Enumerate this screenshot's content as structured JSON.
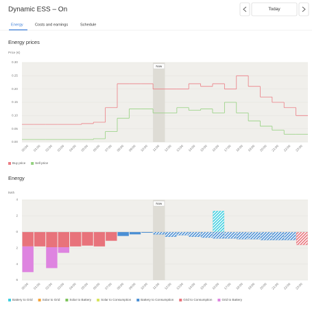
{
  "header": {
    "title": "Dynamic ESS – On",
    "date_button": "Today"
  },
  "tabs": [
    "Energy",
    "Costs and earnings",
    "Schedule"
  ],
  "chart_data": [
    {
      "type": "line",
      "step": true,
      "title": "Energy prices",
      "y_label": "Price (€)",
      "now": "11:00",
      "now_label": "Now",
      "categories": [
        "00:00",
        "01:00",
        "02:00",
        "03:00",
        "04:00",
        "05:00",
        "06:00",
        "07:00",
        "08:00",
        "09:00",
        "10:00",
        "11:00",
        "12:00",
        "13:00",
        "14:00",
        "15:00",
        "16:00",
        "17:00",
        "18:00",
        "19:00",
        "20:00",
        "21:00",
        "22:00",
        "23:00"
      ],
      "series": [
        {
          "name": "Buy price",
          "color": "#eb7d84",
          "values": [
            0.067,
            0.067,
            0.067,
            0.067,
            0.067,
            0.07,
            0.075,
            0.13,
            0.22,
            0.22,
            0.22,
            0.2,
            0.2,
            0.2,
            0.22,
            0.21,
            0.22,
            0.2,
            0.25,
            0.21,
            0.17,
            0.15,
            0.13,
            0.1
          ]
        },
        {
          "name": "Sell price",
          "color": "#93d17e",
          "values": [
            0.01,
            0.01,
            0.01,
            0.01,
            0.01,
            0.01,
            0.013,
            0.04,
            0.09,
            0.125,
            0.125,
            0.11,
            0.11,
            0.13,
            0.12,
            0.125,
            0.11,
            0.15,
            0.11,
            0.08,
            0.06,
            0.045,
            0.03,
            0.03
          ]
        }
      ],
      "ylim": [
        0,
        0.3
      ],
      "yticks": [
        {
          "value": 0,
          "label": "0.00"
        },
        0.05,
        {
          "value": 0.1,
          "label": "0.10"
        },
        0.15,
        {
          "value": 0.2,
          "label": "0.20"
        },
        0.25,
        {
          "value": 0.3,
          "label": "0.30"
        }
      ],
      "grid": true
    },
    {
      "type": "bar",
      "stacked": true,
      "title": "Energy",
      "y_label": "kWh",
      "now": "11:00",
      "now_label": "Now",
      "categories": [
        "00:00",
        "01:00",
        "02:00",
        "03:00",
        "04:00",
        "05:00",
        "06:00",
        "07:00",
        "08:00",
        "09:00",
        "10:00",
        "11:00",
        "12:00",
        "13:00",
        "14:00",
        "15:00",
        "16:00",
        "17:00",
        "18:00",
        "19:00",
        "20:00",
        "21:00",
        "22:00",
        "23:00"
      ],
      "series": [
        {
          "name": "Battery to Grid",
          "color": "#3fcfe0",
          "values": [
            0,
            0,
            0,
            0,
            0,
            0,
            0,
            0,
            0,
            0,
            0,
            0,
            0,
            0,
            0,
            0,
            2.6,
            0,
            0,
            0,
            0,
            0,
            0,
            0
          ]
        },
        {
          "name": "Solar to Grid",
          "color": "#f5a43a",
          "values": [
            0,
            0,
            0,
            0,
            0,
            0,
            0,
            0,
            0,
            0,
            0,
            0,
            0,
            0,
            0,
            0,
            0,
            0,
            0,
            0,
            0,
            0,
            0,
            0
          ]
        },
        {
          "name": "Solar to Battery",
          "color": "#7cc35a",
          "values": [
            0,
            0,
            0,
            0,
            0,
            0,
            0,
            0,
            0,
            0,
            0,
            0,
            0,
            0,
            0,
            0,
            0,
            0,
            0,
            0,
            0,
            0,
            0,
            0
          ]
        },
        {
          "name": "Solar to Consumption",
          "color": "#d6e35c",
          "values": [
            0,
            0,
            0,
            0,
            0,
            0,
            0,
            0,
            0,
            0,
            0,
            0,
            0,
            0,
            0,
            0,
            0,
            0,
            0,
            0,
            0,
            0,
            0,
            0
          ]
        },
        {
          "name": "Battery to Consumption",
          "color": "#4a8fd4",
          "values": [
            0,
            0,
            0,
            0,
            0,
            0,
            0,
            0,
            -0.5,
            -0.3,
            -0.1,
            -0.3,
            -0.6,
            -0.4,
            -0.6,
            -0.7,
            -0.8,
            -0.8,
            -0.9,
            -0.9,
            -1,
            -1,
            -1,
            0
          ]
        },
        {
          "name": "Grid to Consumption",
          "color": "#e8737b",
          "values": [
            -1.8,
            -1.8,
            -1.9,
            -1.9,
            -1.8,
            -1.7,
            -1.8,
            -1.1,
            0,
            0,
            0,
            0,
            0,
            0,
            0,
            0,
            0,
            0,
            0,
            0,
            0,
            0,
            0,
            -1.6
          ]
        },
        {
          "name": "Grid to Battery",
          "color": "#de84e0",
          "values": [
            -3.2,
            0,
            -2.6,
            -0.7,
            0,
            0,
            0,
            0,
            0,
            0,
            0,
            0,
            0,
            0,
            0,
            0,
            0,
            0,
            0,
            0,
            0,
            0,
            0,
            0
          ]
        }
      ],
      "ylim": [
        -6,
        4
      ],
      "yticks": [
        {
          "value": -6,
          "label": "6"
        },
        {
          "value": -4,
          "label": "4"
        },
        {
          "value": -2,
          "label": "2"
        },
        0,
        2,
        4
      ],
      "grid": true
    }
  ]
}
